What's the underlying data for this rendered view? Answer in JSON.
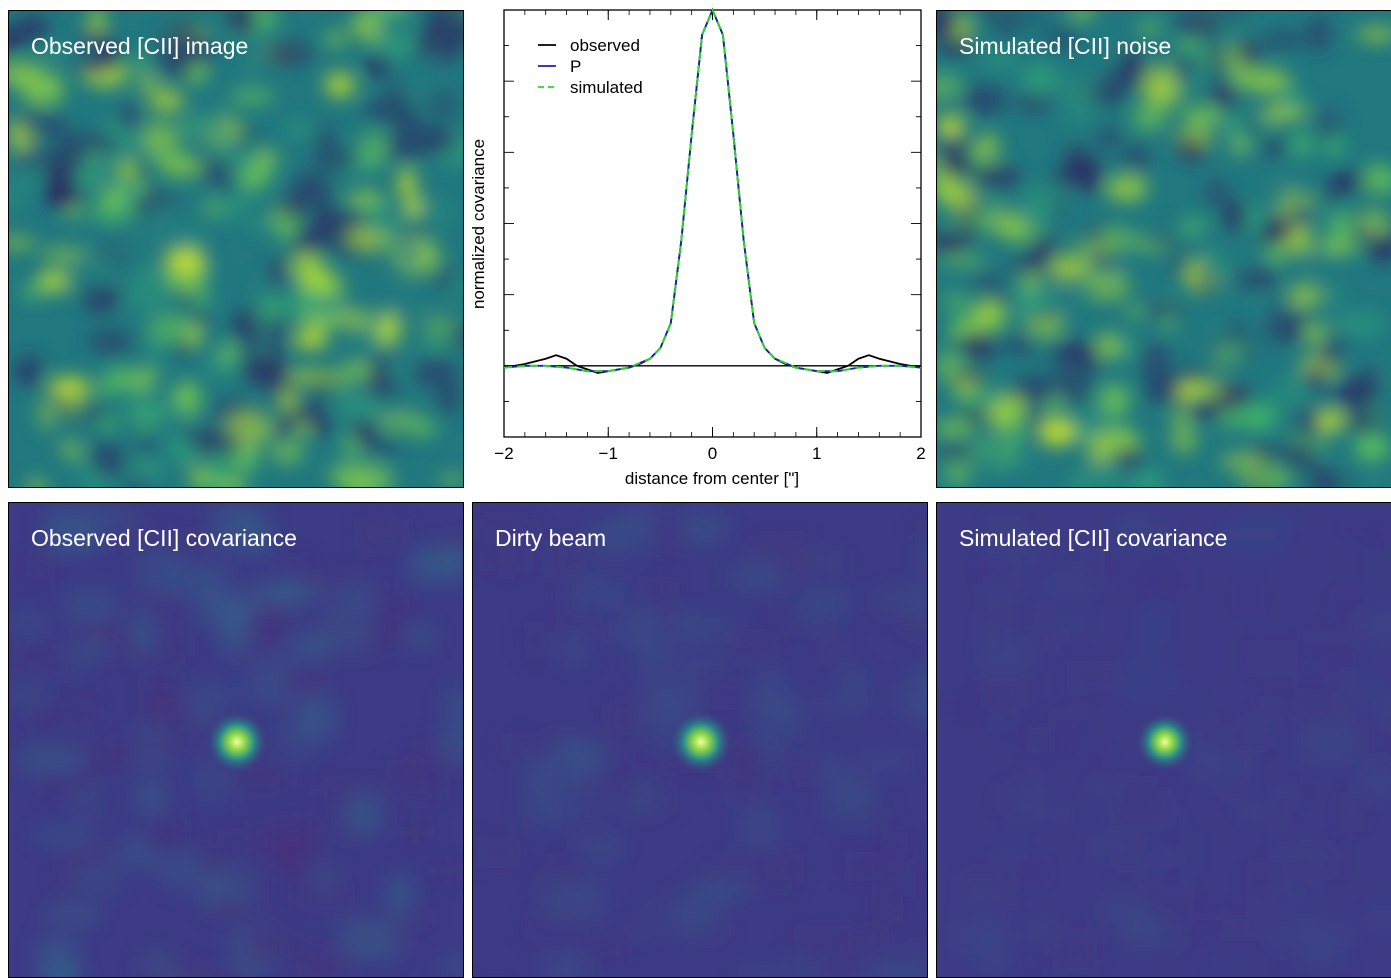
{
  "panels": {
    "observed_image": {
      "title": "Observed [CII] image"
    },
    "simulated_noise": {
      "title": "Simulated [CII] noise"
    },
    "observed_covariance": {
      "title": "Observed [CII] covariance"
    },
    "dirty_beam": {
      "title": "Dirty beam"
    },
    "simulated_covariance": {
      "title": "Simulated [CII] covariance"
    }
  },
  "colors": {
    "noise_low": "#2e1d5c",
    "noise_mid": "#21787f",
    "noise_high": "#c8e02a",
    "cov_background": "#3d3b85",
    "cov_peak": "#f2ff9a",
    "observed": "#000000",
    "P": "#1f1fb0",
    "simulated": "#22dd22"
  },
  "chart_data": {
    "type": "line",
    "title": "",
    "xlabel": "distance from center [\"]",
    "ylabel": "normalized covariance",
    "xlim": [
      -2,
      2
    ],
    "ylim": [
      -0.2,
      1.0
    ],
    "x_ticks": [
      -2,
      -1,
      0,
      1,
      2
    ],
    "x_tick_labels": [
      "−2",
      "−1",
      "0",
      "1",
      "2"
    ],
    "legend_position": "top-left",
    "grid": false,
    "series": [
      {
        "name": "observed",
        "style": "solid",
        "x": [
          -2.0,
          -1.8,
          -1.6,
          -1.5,
          -1.4,
          -1.3,
          -1.2,
          -1.1,
          -1.0,
          -0.9,
          -0.8,
          -0.7,
          -0.6,
          -0.5,
          -0.4,
          -0.3,
          -0.2,
          -0.1,
          0.0,
          0.1,
          0.2,
          0.3,
          0.4,
          0.5,
          0.6,
          0.7,
          0.8,
          0.9,
          1.0,
          1.1,
          1.2,
          1.3,
          1.4,
          1.5,
          1.6,
          1.8,
          2.0
        ],
        "y": [
          -0.005,
          0.005,
          0.02,
          0.03,
          0.02,
          0.0,
          -0.01,
          -0.02,
          -0.015,
          -0.01,
          -0.005,
          0.005,
          0.02,
          0.05,
          0.12,
          0.35,
          0.65,
          0.93,
          1.0,
          0.93,
          0.65,
          0.35,
          0.12,
          0.05,
          0.02,
          0.005,
          -0.005,
          -0.01,
          -0.015,
          -0.02,
          -0.01,
          0.0,
          0.02,
          0.03,
          0.02,
          0.005,
          -0.005
        ]
      },
      {
        "name": "P",
        "style": "solid",
        "x": [
          -2.0,
          -1.8,
          -1.6,
          -1.4,
          -1.2,
          -1.0,
          -0.8,
          -0.6,
          -0.5,
          -0.4,
          -0.3,
          -0.2,
          -0.1,
          0.0,
          0.1,
          0.2,
          0.3,
          0.4,
          0.5,
          0.6,
          0.8,
          1.0,
          1.2,
          1.4,
          1.6,
          1.8,
          2.0
        ],
        "y": [
          -0.005,
          0.0,
          0.0,
          -0.005,
          -0.015,
          -0.015,
          -0.005,
          0.02,
          0.05,
          0.12,
          0.35,
          0.65,
          0.93,
          1.0,
          0.93,
          0.65,
          0.35,
          0.12,
          0.05,
          0.02,
          -0.005,
          -0.015,
          -0.015,
          -0.005,
          0.0,
          0.0,
          -0.005
        ]
      },
      {
        "name": "simulated",
        "style": "dashed",
        "x": [
          -2.0,
          -1.8,
          -1.6,
          -1.4,
          -1.2,
          -1.0,
          -0.8,
          -0.6,
          -0.5,
          -0.4,
          -0.3,
          -0.2,
          -0.1,
          0.0,
          0.1,
          0.2,
          0.3,
          0.4,
          0.5,
          0.6,
          0.8,
          1.0,
          1.2,
          1.4,
          1.6,
          1.8,
          2.0
        ],
        "y": [
          -0.005,
          0.0,
          0.0,
          -0.005,
          -0.015,
          -0.015,
          -0.005,
          0.02,
          0.05,
          0.12,
          0.35,
          0.65,
          0.93,
          1.0,
          0.93,
          0.65,
          0.35,
          0.12,
          0.05,
          0.02,
          -0.005,
          -0.015,
          -0.015,
          -0.005,
          0.0,
          0.0,
          -0.005
        ]
      }
    ],
    "reference_line": {
      "y": 0
    }
  }
}
